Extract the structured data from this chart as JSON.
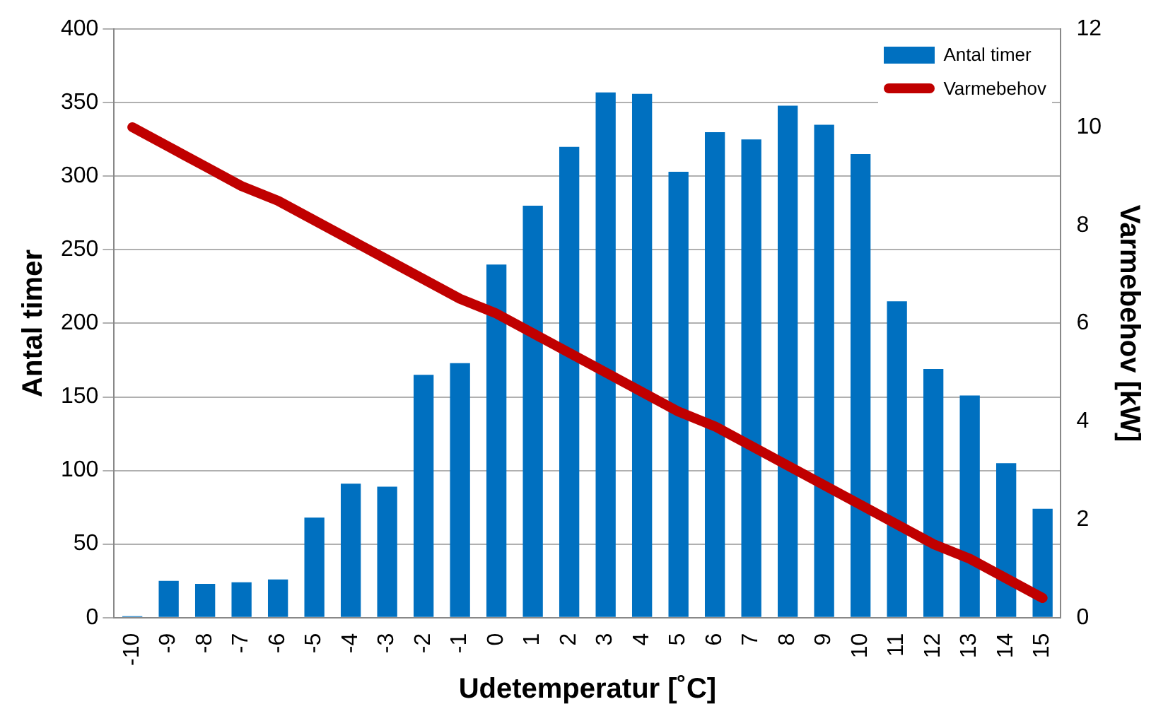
{
  "chart_data": {
    "type": "bar",
    "xlabel": "Udetemperatur [˚C]",
    "ylabel": "Antal timer",
    "y2label": "Varmebehov [kW]",
    "categories": [
      "-10",
      "-9",
      "-8",
      "-7",
      "-6",
      "-5",
      "-4",
      "-3",
      "-2",
      "-1",
      "0",
      "1",
      "2",
      "3",
      "4",
      "5",
      "6",
      "7",
      "8",
      "9",
      "10",
      "11",
      "12",
      "13",
      "14",
      "15"
    ],
    "series": [
      {
        "name": "Antal timer",
        "color": "#0070c0",
        "values": [
          1,
          25,
          23,
          24,
          26,
          68,
          91,
          89,
          165,
          173,
          240,
          280,
          320,
          357,
          356,
          303,
          330,
          325,
          348,
          335,
          315,
          215,
          169,
          151,
          105,
          74
        ]
      },
      {
        "name": "Varmebehov",
        "type": "line",
        "axis": "y2",
        "color": "#c00000",
        "values": [
          10,
          9.6,
          9.2,
          8.8,
          8.5,
          8.1,
          7.7,
          7.3,
          6.9,
          6.5,
          6.2,
          5.8,
          5.4,
          5.0,
          4.6,
          4.2,
          3.9,
          3.5,
          3.1,
          2.7,
          2.3,
          1.9,
          1.5,
          1.2,
          0.8,
          0.4
        ]
      }
    ],
    "ylim": [
      0,
      400
    ],
    "yticks": [
      0,
      50,
      100,
      150,
      200,
      250,
      300,
      350,
      400
    ],
    "y2lim": [
      0,
      12
    ],
    "y2ticks": [
      0,
      2,
      4,
      6,
      8,
      10,
      12
    ],
    "grid": "y",
    "legend": "top right",
    "marker": "none",
    "line_style": "solid"
  }
}
